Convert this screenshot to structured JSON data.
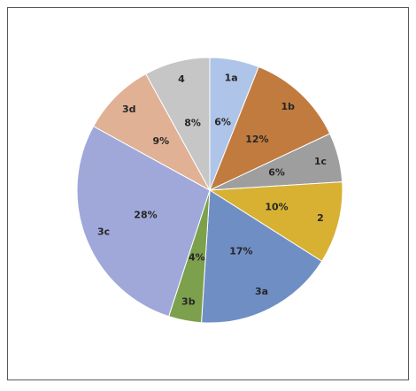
{
  "chart_data": {
    "type": "pie",
    "categories": [
      "1a",
      "1b",
      "1c",
      "2",
      "3a",
      "3b",
      "3c",
      "3d",
      "4"
    ],
    "values": [
      6,
      12,
      6,
      10,
      17,
      4,
      28,
      9,
      8
    ],
    "value_labels": [
      "6%",
      "12%",
      "6%",
      "10%",
      "17%",
      "4%",
      "28%",
      "9%",
      "8%"
    ],
    "colors": [
      "#aec4e8",
      "#c17b3f",
      "#9e9e9e",
      "#d8b133",
      "#6f8ec4",
      "#7ca04c",
      "#a0a8d9",
      "#e0b195",
      "#c6c6c6"
    ]
  }
}
